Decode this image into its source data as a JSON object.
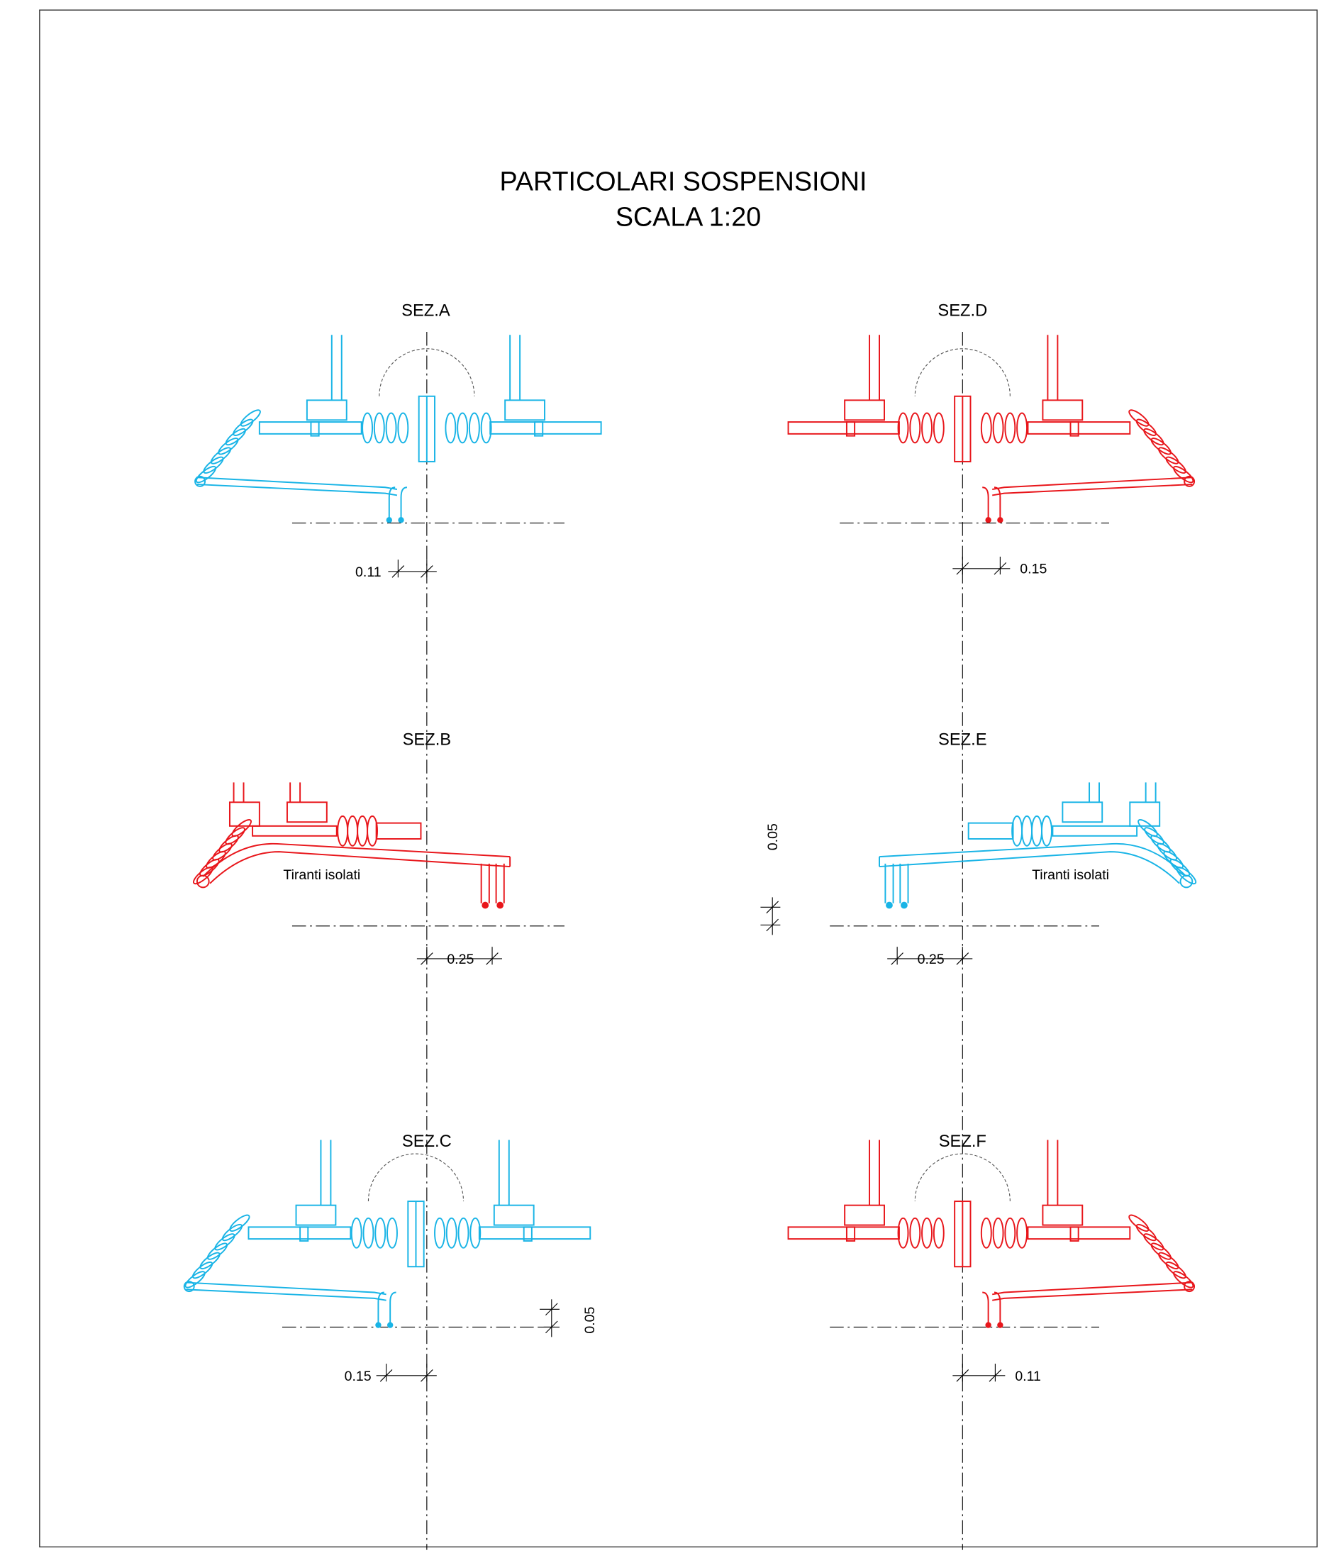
{
  "title": {
    "line1": "PARTICOLARI SOSPENSIONI",
    "line2": "SCALA 1:20"
  },
  "sections": [
    {
      "label": "SEZ.A",
      "dimension": "0.11"
    },
    {
      "label": "SEZ.D",
      "dimension": "0.15"
    },
    {
      "label": "SEZ.B",
      "dimension": "0.25",
      "note": "Tiranti isolati"
    },
    {
      "label": "SEZ.E",
      "dimension": "0.25",
      "note": "Tiranti isolati",
      "vertical_dimension": "0.05"
    },
    {
      "label": "SEZ.C",
      "dimension": "0.15",
      "vertical_dimension": "0.05"
    },
    {
      "label": "SEZ.F",
      "dimension": "0.11"
    }
  ]
}
